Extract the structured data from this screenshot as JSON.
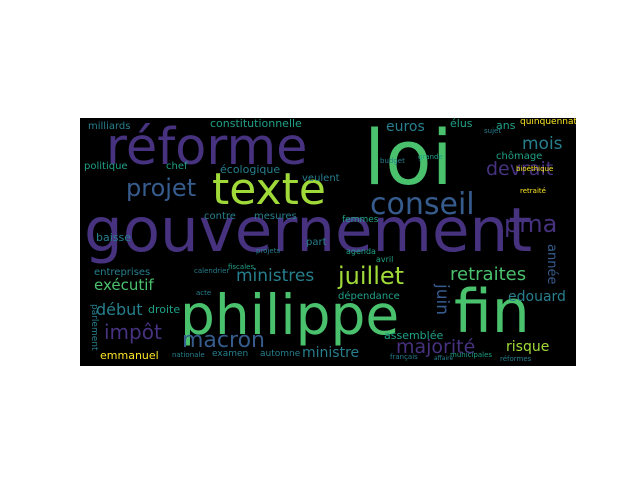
{
  "colors": {
    "background": "#000000",
    "page": "#ffffff",
    "purple": "#46327e",
    "blue": "#365c8d",
    "teal": "#277f8e",
    "green": "#1fa187",
    "lime": "#4ac16d",
    "yellowgreen": "#a0da39",
    "yellow": "#fde725",
    "deep": "#440154"
  },
  "words": [
    "gouvernement",
    "réforme",
    "loi",
    "philippe",
    "fin",
    "texte",
    "conseil",
    "projet",
    "juillet",
    "retraites",
    "macron",
    "pma",
    "devrait",
    "majorité",
    "mois",
    "ministres",
    "exécutif",
    "début",
    "impôt",
    "euros",
    "edouard",
    "juin",
    "année",
    "ministre",
    "risque",
    "constitutionnelle",
    "emmanuel",
    "élus",
    "ans",
    "assemblée",
    "dépendance",
    "baisse",
    "droite",
    "contre",
    "politique",
    "écologique",
    "mesures",
    "chômage",
    "entreprises",
    "chef",
    "veulent",
    "milliards",
    "parlement",
    "automne",
    "examen",
    "femmes",
    "part",
    "quinquennat",
    "bioéthique",
    "retraité",
    "sujet",
    "budget",
    "nationale",
    "français",
    "municipales",
    "réformes",
    "agenda",
    "avril",
    "acte",
    "fiscales",
    "projets",
    "grande",
    "affaire",
    "calendrier"
  ]
}
